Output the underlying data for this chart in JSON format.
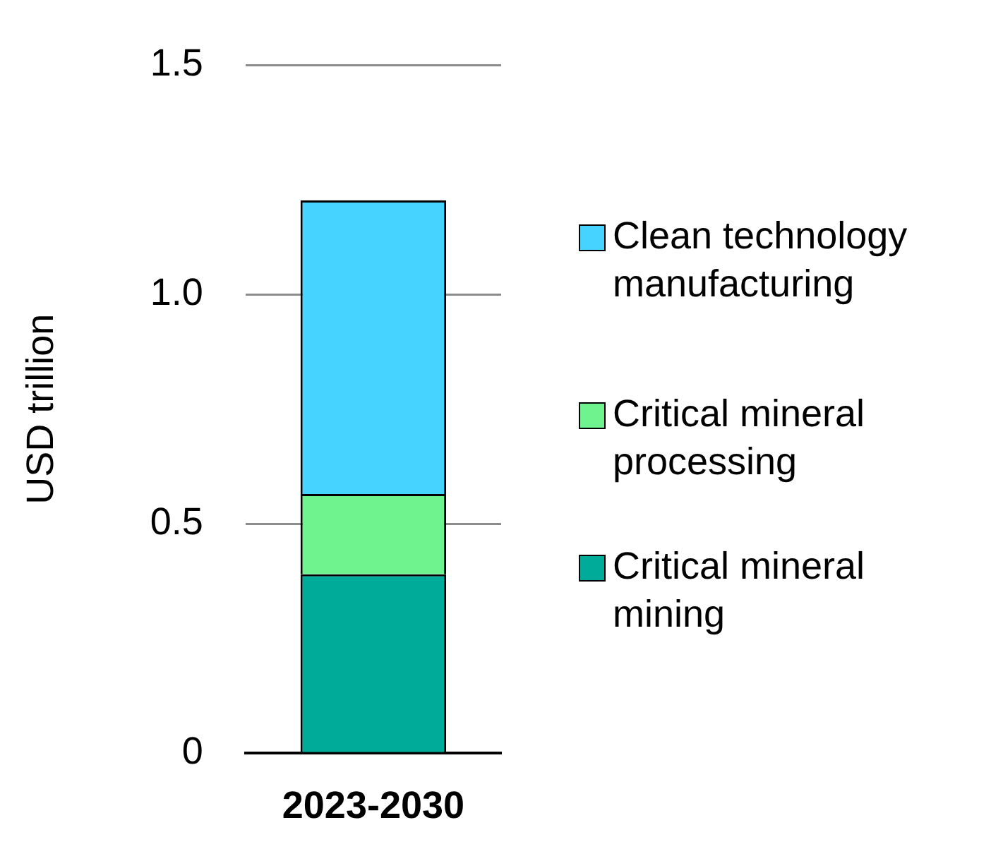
{
  "chart_data": {
    "type": "bar",
    "stacked": true,
    "ylabel": "USD trillion",
    "categories": [
      "2023-2030"
    ],
    "series": [
      {
        "name": "Critical mineral mining",
        "color": "#00ab9a",
        "values": [
          0.39
        ]
      },
      {
        "name": "Critical mineral processing",
        "color": "#6ef38f",
        "values": [
          0.175
        ]
      },
      {
        "name": "Clean technology manufacturing",
        "color": "#47d3ff",
        "values": [
          0.64
        ]
      }
    ],
    "ylim": [
      0,
      1.5
    ],
    "yticks": [
      0,
      0.5,
      {
        "value": 1,
        "label": "1.0"
      },
      1.5
    ],
    "grid": "y",
    "legend": "right"
  }
}
